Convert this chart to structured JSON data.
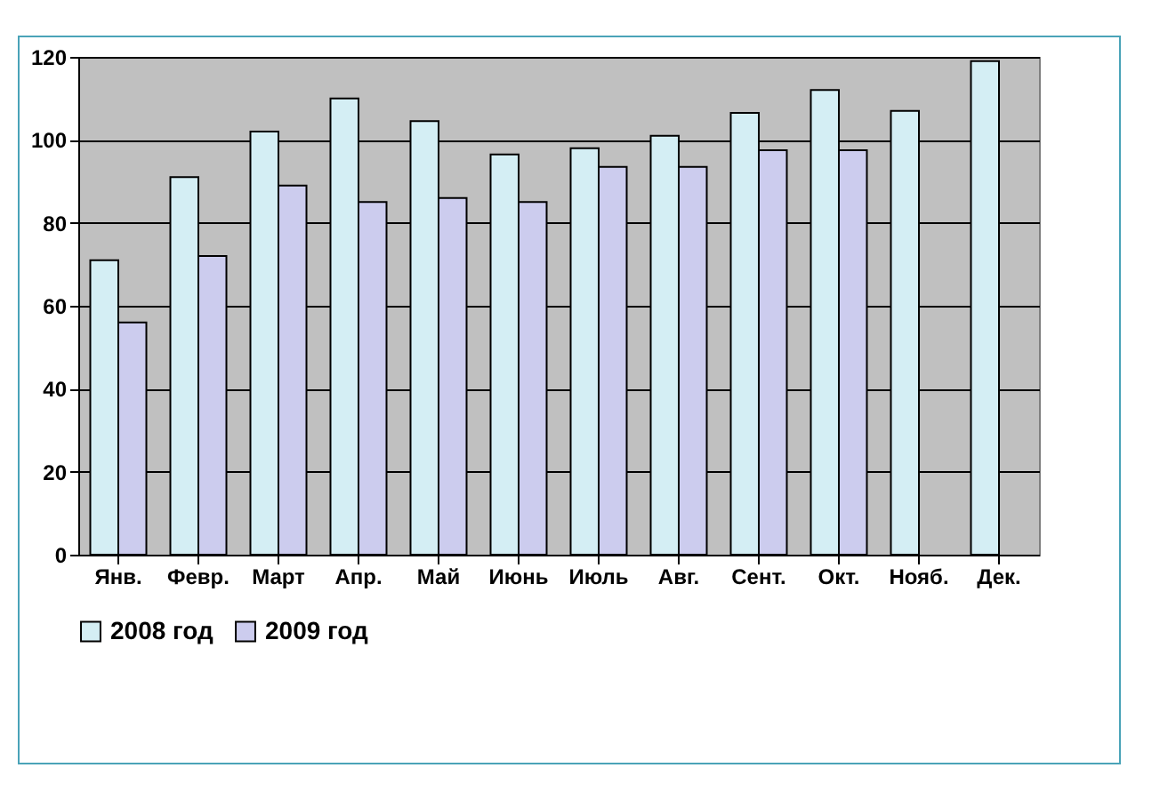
{
  "chart_data": {
    "type": "bar",
    "categories": [
      "Янв.",
      "Февр.",
      "Март",
      "Апр.",
      "Май",
      "Июнь",
      "Июль",
      "Авг.",
      "Сент.",
      "Окт.",
      "Нояб.",
      "Дек."
    ],
    "series": [
      {
        "name": "2008 год",
        "color": "#d4eef4",
        "values": [
          71,
          91,
          102,
          110,
          104.5,
          96.5,
          98,
          101,
          106.5,
          112,
          107,
          119
        ]
      },
      {
        "name": "2009 год",
        "color": "#ccccee",
        "values": [
          56,
          72,
          89,
          85,
          86,
          85,
          93.5,
          93.5,
          97.5,
          97.5,
          null,
          null
        ]
      }
    ],
    "ylim": [
      0,
      120
    ],
    "yticks": [
      0,
      20,
      40,
      60,
      80,
      100,
      120
    ],
    "grid": "y",
    "legend": "bottom"
  }
}
